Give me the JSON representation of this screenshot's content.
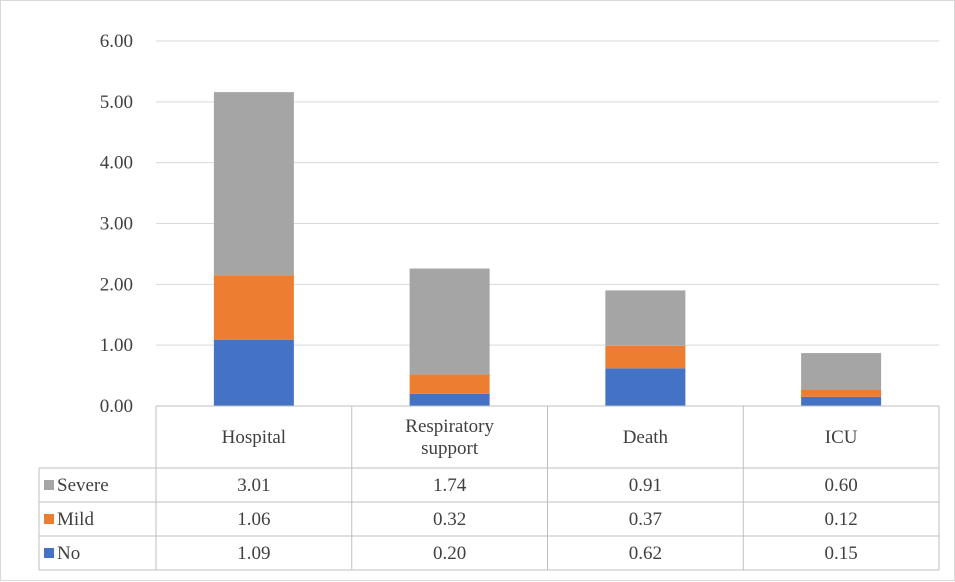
{
  "chart_data": {
    "type": "bar",
    "stacked": true,
    "categories": [
      "Hospital",
      "Respiratory support",
      "Death",
      "ICU"
    ],
    "category_lines": [
      [
        "Hospital"
      ],
      [
        "Respiratory",
        "support"
      ],
      [
        "Death"
      ],
      [
        "ICU"
      ]
    ],
    "series": [
      {
        "name": "No",
        "values": [
          1.09,
          0.2,
          0.62,
          0.15
        ],
        "labels": [
          "1.09",
          "0.20",
          "0.62",
          "0.15"
        ],
        "color": "#4472c4"
      },
      {
        "name": "Mild",
        "values": [
          1.06,
          0.32,
          0.37,
          0.12
        ],
        "labels": [
          "1.06",
          "0.32",
          "0.37",
          "0.12"
        ],
        "color": "#ed7d31"
      },
      {
        "name": "Severe",
        "values": [
          3.01,
          1.74,
          0.91,
          0.6
        ],
        "labels": [
          "3.01",
          "1.74",
          "0.91",
          "0.60"
        ],
        "color": "#a5a5a5"
      }
    ],
    "ylim": [
      0,
      6
    ],
    "yticks": [
      "0.00",
      "1.00",
      "2.00",
      "3.00",
      "4.00",
      "5.00",
      "6.00"
    ],
    "grid": true,
    "legend": "data-table",
    "data_table_order": [
      "Severe",
      "Mild",
      "No"
    ]
  }
}
